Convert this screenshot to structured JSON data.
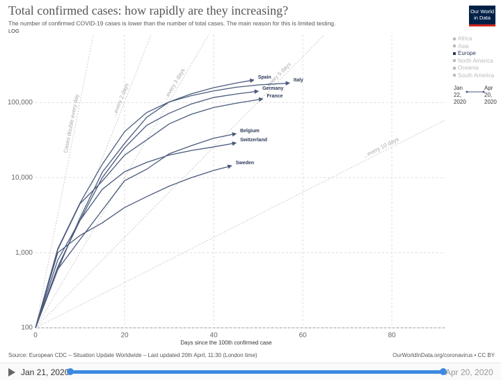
{
  "chart_data": {
    "type": "line",
    "title": "Total confirmed cases: how rapidly are they increasing?",
    "subtitle": "The number of confirmed COVID-19 cases is lower than the number of total cases. The main reason for this is limited testing.",
    "scale_label": "LOG",
    "log_scale": true,
    "grid": true,
    "x_label": "Days since the 100th confirmed case",
    "xlim": [
      0,
      92
    ],
    "xticks": [
      0,
      20,
      40,
      60,
      80
    ],
    "ylim": [
      100,
      800000
    ],
    "yticks": [
      100,
      {
        "value": 1000,
        "label": "1,000"
      },
      {
        "value": 10000,
        "label": "10,000"
      },
      {
        "value": 100000,
        "label": "100,000"
      }
    ],
    "reference_lines": [
      {
        "label": "Cases double every day",
        "doubling_days": 1
      },
      {
        "label": "...every 2 days",
        "doubling_days": 2
      },
      {
        "label": "...every 3 days",
        "doubling_days": 3
      },
      {
        "label": "...every 5 days",
        "doubling_days": 5
      },
      {
        "label": "...every 10 days",
        "doubling_days": 10
      }
    ],
    "series": [
      {
        "name": "Spain",
        "color": "#4a5a7c",
        "x": [
          0,
          5,
          10,
          15,
          20,
          25,
          30,
          35,
          40,
          45,
          49
        ],
        "values": [
          100,
          600,
          2900,
          11800,
          28600,
          64000,
          102000,
          131000,
          158000,
          182000,
          200000
        ]
      },
      {
        "name": "Italy",
        "color": "#4a5a7c",
        "x": [
          0,
          5,
          10,
          15,
          20,
          25,
          30,
          35,
          40,
          45,
          50,
          57
        ],
        "values": [
          100,
          1130,
          4600,
          15100,
          41000,
          74000,
          102000,
          124000,
          143000,
          160000,
          172000,
          182000
        ]
      },
      {
        "name": "Germany",
        "color": "#4a5a7c",
        "x": [
          0,
          5,
          10,
          15,
          20,
          25,
          30,
          35,
          40,
          45,
          50
        ],
        "values": [
          100,
          800,
          2700,
          10000,
          25000,
          50000,
          72000,
          96000,
          117000,
          130000,
          142000
        ]
      },
      {
        "name": "France",
        "color": "#4a5a7c",
        "x": [
          0,
          5,
          10,
          15,
          20,
          25,
          30,
          35,
          40,
          45,
          51
        ],
        "values": [
          100,
          1100,
          4500,
          9000,
          20000,
          32000,
          52000,
          70000,
          86000,
          98000,
          112000
        ]
      },
      {
        "name": "Belgium",
        "color": "#4a5a7c",
        "x": [
          0,
          5,
          10,
          15,
          20,
          25,
          30,
          35,
          40,
          45
        ],
        "values": [
          100,
          600,
          1500,
          3700,
          9100,
          13000,
          20800,
          26700,
          33500,
          38500
        ]
      },
      {
        "name": "Switzerland",
        "color": "#4a5a7c",
        "x": [
          0,
          5,
          10,
          15,
          20,
          25,
          30,
          35,
          40,
          45
        ],
        "values": [
          100,
          650,
          2700,
          7000,
          12000,
          16000,
          20000,
          23000,
          25700,
          29000
        ]
      },
      {
        "name": "Sweden",
        "color": "#4a5a7c",
        "x": [
          0,
          5,
          10,
          15,
          20,
          25,
          30,
          35,
          40,
          44
        ],
        "values": [
          100,
          1000,
          1700,
          2500,
          4000,
          5600,
          7700,
          10000,
          12500,
          14400
        ]
      }
    ],
    "legend": {
      "items": [
        "Africa",
        "Asia",
        "Europe",
        "North America",
        "Oceania",
        "South America"
      ],
      "highlighted": "Europe"
    },
    "date_range": {
      "start": "Jan 22, 2020",
      "end": "Apr 20, 2020"
    },
    "timeline": {
      "start": "Jan 21, 2020",
      "end": "Apr 20, 2020"
    },
    "source": "Source: European CDC – Situation Update Worldwide – Last updated 20th April, 11:30 (London time)",
    "credit": "OurWorldInData.org/coronavirus • CC BY",
    "logo": "Our World in Data"
  }
}
